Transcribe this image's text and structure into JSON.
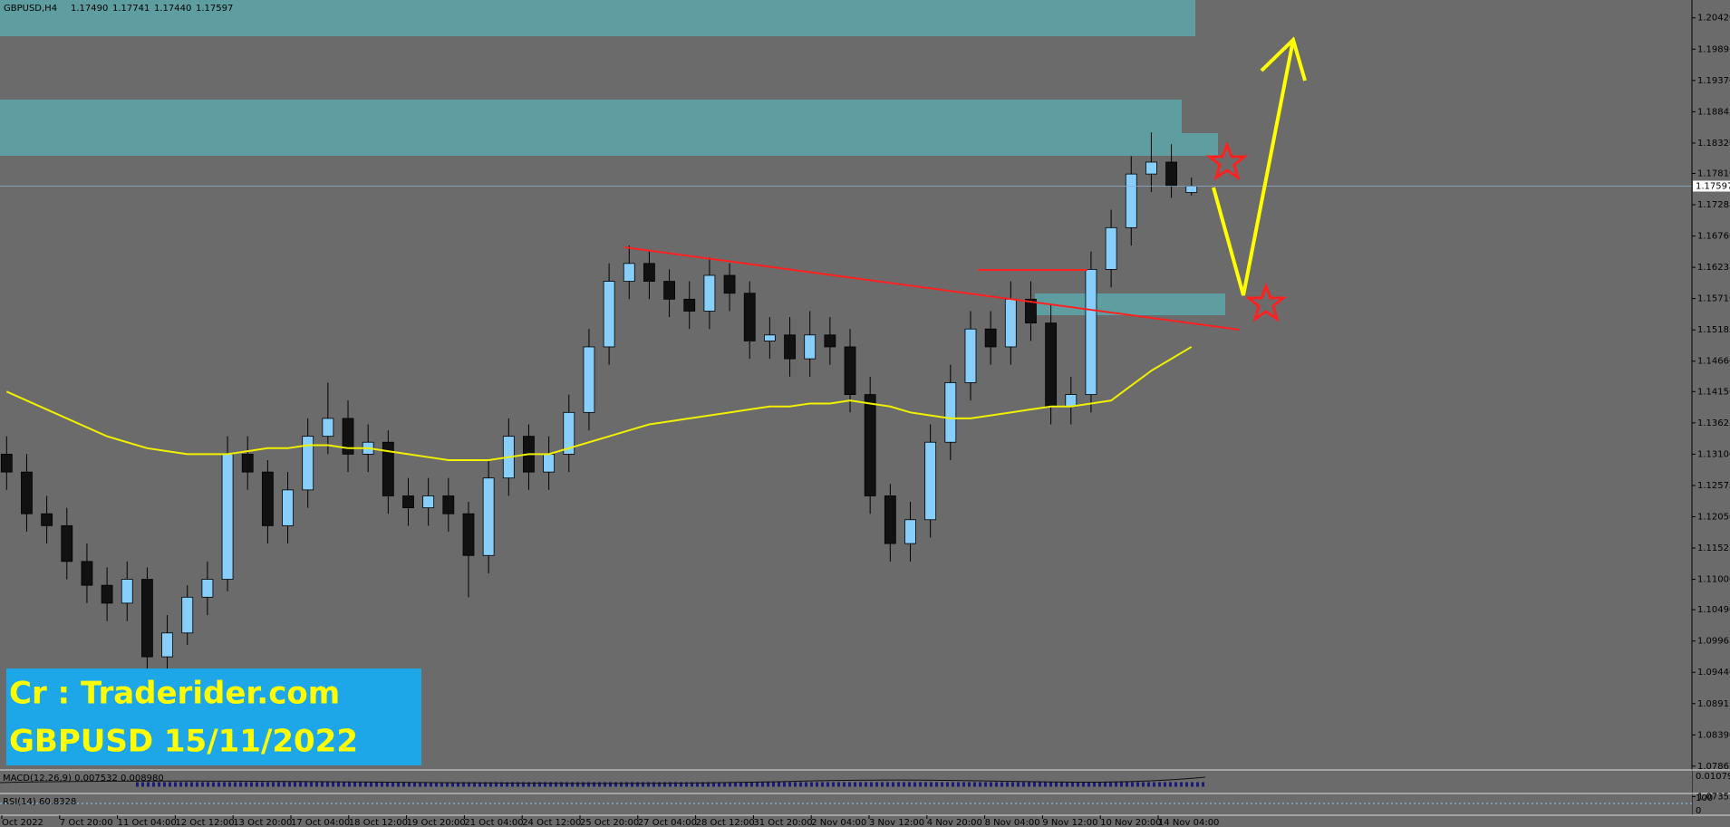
{
  "chart_data": {
    "type": "candlestick",
    "header": {
      "symbol": "GBPUSD,H4",
      "quote": [
        "1.17490",
        "1.17741",
        "1.17440",
        "1.17597"
      ]
    },
    "open": [
      1.131,
      1.128,
      1.121,
      1.119,
      1.113,
      1.109,
      1.106,
      1.11,
      1.097,
      1.101,
      1.107,
      1.11,
      1.131,
      1.128,
      1.119,
      1.125,
      1.134,
      1.137,
      1.131,
      1.133,
      1.124,
      1.122,
      1.124,
      1.121,
      1.114,
      1.127,
      1.134,
      1.128,
      1.131,
      1.138,
      1.149,
      1.16,
      1.163,
      1.16,
      1.157,
      1.155,
      1.161,
      1.158,
      1.15,
      1.151,
      1.147,
      1.151,
      1.149,
      1.141,
      1.124,
      1.116,
      1.12,
      1.133,
      1.143,
      1.152,
      1.149,
      1.157,
      1.153,
      1.139,
      1.141,
      1.162,
      1.169,
      1.178,
      1.18,
      1.1749
    ],
    "high": [
      1.134,
      1.131,
      1.124,
      1.122,
      1.116,
      1.112,
      1.113,
      1.112,
      1.104,
      1.109,
      1.113,
      1.134,
      1.134,
      1.13,
      1.128,
      1.137,
      1.143,
      1.14,
      1.136,
      1.135,
      1.127,
      1.127,
      1.127,
      1.123,
      1.13,
      1.137,
      1.136,
      1.134,
      1.141,
      1.152,
      1.163,
      1.166,
      1.165,
      1.162,
      1.16,
      1.164,
      1.163,
      1.16,
      1.154,
      1.154,
      1.155,
      1.154,
      1.152,
      1.144,
      1.126,
      1.123,
      1.136,
      1.146,
      1.155,
      1.155,
      1.16,
      1.16,
      1.156,
      1.144,
      1.165,
      1.172,
      1.181,
      1.185,
      1.183,
      1.17741
    ],
    "low": [
      1.125,
      1.118,
      1.116,
      1.11,
      1.106,
      1.103,
      1.103,
      1.094,
      1.094,
      1.099,
      1.104,
      1.108,
      1.125,
      1.116,
      1.116,
      1.122,
      1.131,
      1.128,
      1.128,
      1.121,
      1.119,
      1.119,
      1.118,
      1.107,
      1.111,
      1.124,
      1.125,
      1.125,
      1.128,
      1.135,
      1.146,
      1.157,
      1.157,
      1.154,
      1.152,
      1.152,
      1.155,
      1.147,
      1.147,
      1.144,
      1.144,
      1.146,
      1.138,
      1.121,
      1.113,
      1.113,
      1.117,
      1.13,
      1.14,
      1.146,
      1.146,
      1.15,
      1.136,
      1.136,
      1.138,
      1.159,
      1.166,
      1.175,
      1.174,
      1.1744
    ],
    "close": [
      1.128,
      1.121,
      1.119,
      1.113,
      1.109,
      1.106,
      1.11,
      1.097,
      1.101,
      1.107,
      1.11,
      1.131,
      1.128,
      1.119,
      1.125,
      1.134,
      1.137,
      1.131,
      1.133,
      1.124,
      1.122,
      1.124,
      1.121,
      1.114,
      1.127,
      1.134,
      1.128,
      1.131,
      1.138,
      1.149,
      1.16,
      1.163,
      1.16,
      1.157,
      1.155,
      1.161,
      1.158,
      1.15,
      1.151,
      1.147,
      1.151,
      1.149,
      1.141,
      1.124,
      1.116,
      1.12,
      1.133,
      1.143,
      1.152,
      1.149,
      1.157,
      1.153,
      1.139,
      1.141,
      1.162,
      1.169,
      1.178,
      1.18,
      1.176,
      1.17597
    ],
    "up_color": "#87cefa",
    "down_color": "#111111",
    "ma": {
      "color": "#f0f000",
      "values": [
        1.1415,
        1.14,
        1.1385,
        1.137,
        1.1355,
        1.134,
        1.133,
        1.132,
        1.1315,
        1.131,
        1.131,
        1.131,
        1.1315,
        1.132,
        1.132,
        1.1325,
        1.1325,
        1.132,
        1.132,
        1.1315,
        1.131,
        1.1305,
        1.13,
        1.13,
        1.13,
        1.1305,
        1.131,
        1.131,
        1.132,
        1.133,
        1.134,
        1.135,
        1.136,
        1.1365,
        1.137,
        1.1375,
        1.138,
        1.1385,
        1.139,
        1.139,
        1.1395,
        1.1395,
        1.14,
        1.1395,
        1.139,
        1.138,
        1.1375,
        1.137,
        1.137,
        1.1375,
        1.138,
        1.1385,
        1.139,
        1.139,
        1.1395,
        1.14,
        1.1425,
        1.145,
        1.147,
        1.149
      ]
    },
    "ylim": [
      1.0727,
      1.2072
    ],
    "yticks": [
      {
        "value": 1.2042,
        "label": "1.20420"
      },
      1.19895,
      {
        "value": 1.1937,
        "label": "1.19370"
      },
      1.18845,
      {
        "value": 1.1832,
        "label": "1.18320"
      },
      {
        "value": 1.1781,
        "label": "1.17810"
      },
      1.17285,
      {
        "value": 1.1676,
        "label": "1.16760"
      },
      1.16235,
      {
        "value": 1.1571,
        "label": "1.15710"
      },
      1.15185,
      {
        "value": 1.1466,
        "label": "1.14660"
      },
      {
        "value": 1.1415,
        "label": "1.14150"
      },
      1.13625,
      {
        "value": 1.131,
        "label": "1.13100"
      },
      1.12575,
      {
        "value": 1.1205,
        "label": "1.12050"
      },
      1.11525,
      {
        "value": 1.11,
        "label": "1.11000"
      },
      {
        "value": 1.1049,
        "label": "1.10490"
      },
      1.09965,
      {
        "value": 1.0944,
        "label": "1.09440"
      },
      1.08915,
      {
        "value": 1.0839,
        "label": "1.08390"
      },
      1.07865,
      1.07355
    ],
    "x_labels": [
      "Oct 2022",
      "7 Oct 20:00",
      "11 Oct 04:00",
      "12 Oct 12:00",
      "13 Oct 20:00",
      "17 Oct 04:00",
      "18 Oct 12:00",
      "19 Oct 20:00",
      "21 Oct 04:00",
      "24 Oct 12:00",
      "25 Oct 20:00",
      "27 Oct 04:00",
      "28 Oct 12:00",
      "31 Oct 20:00",
      "2 Nov 04:00",
      "3 Nov 12:00",
      "4 Nov 20:00",
      "8 Nov 04:00",
      "9 Nov 12:00",
      "10 Nov 20:00",
      "14 Nov 04:00"
    ],
    "indicators": {
      "macd_label": "MACD(12,26,9) 0.007532 0.008980",
      "macd_ticks": [
        0.010794
      ],
      "rsi_label": "RSI(14) 60.8328",
      "rsi_ticks": [
        100,
        0
      ]
    },
    "watermark": [
      "Cr : Traderider.com",
      "GBPUSD 15/11/2022"
    ]
  }
}
